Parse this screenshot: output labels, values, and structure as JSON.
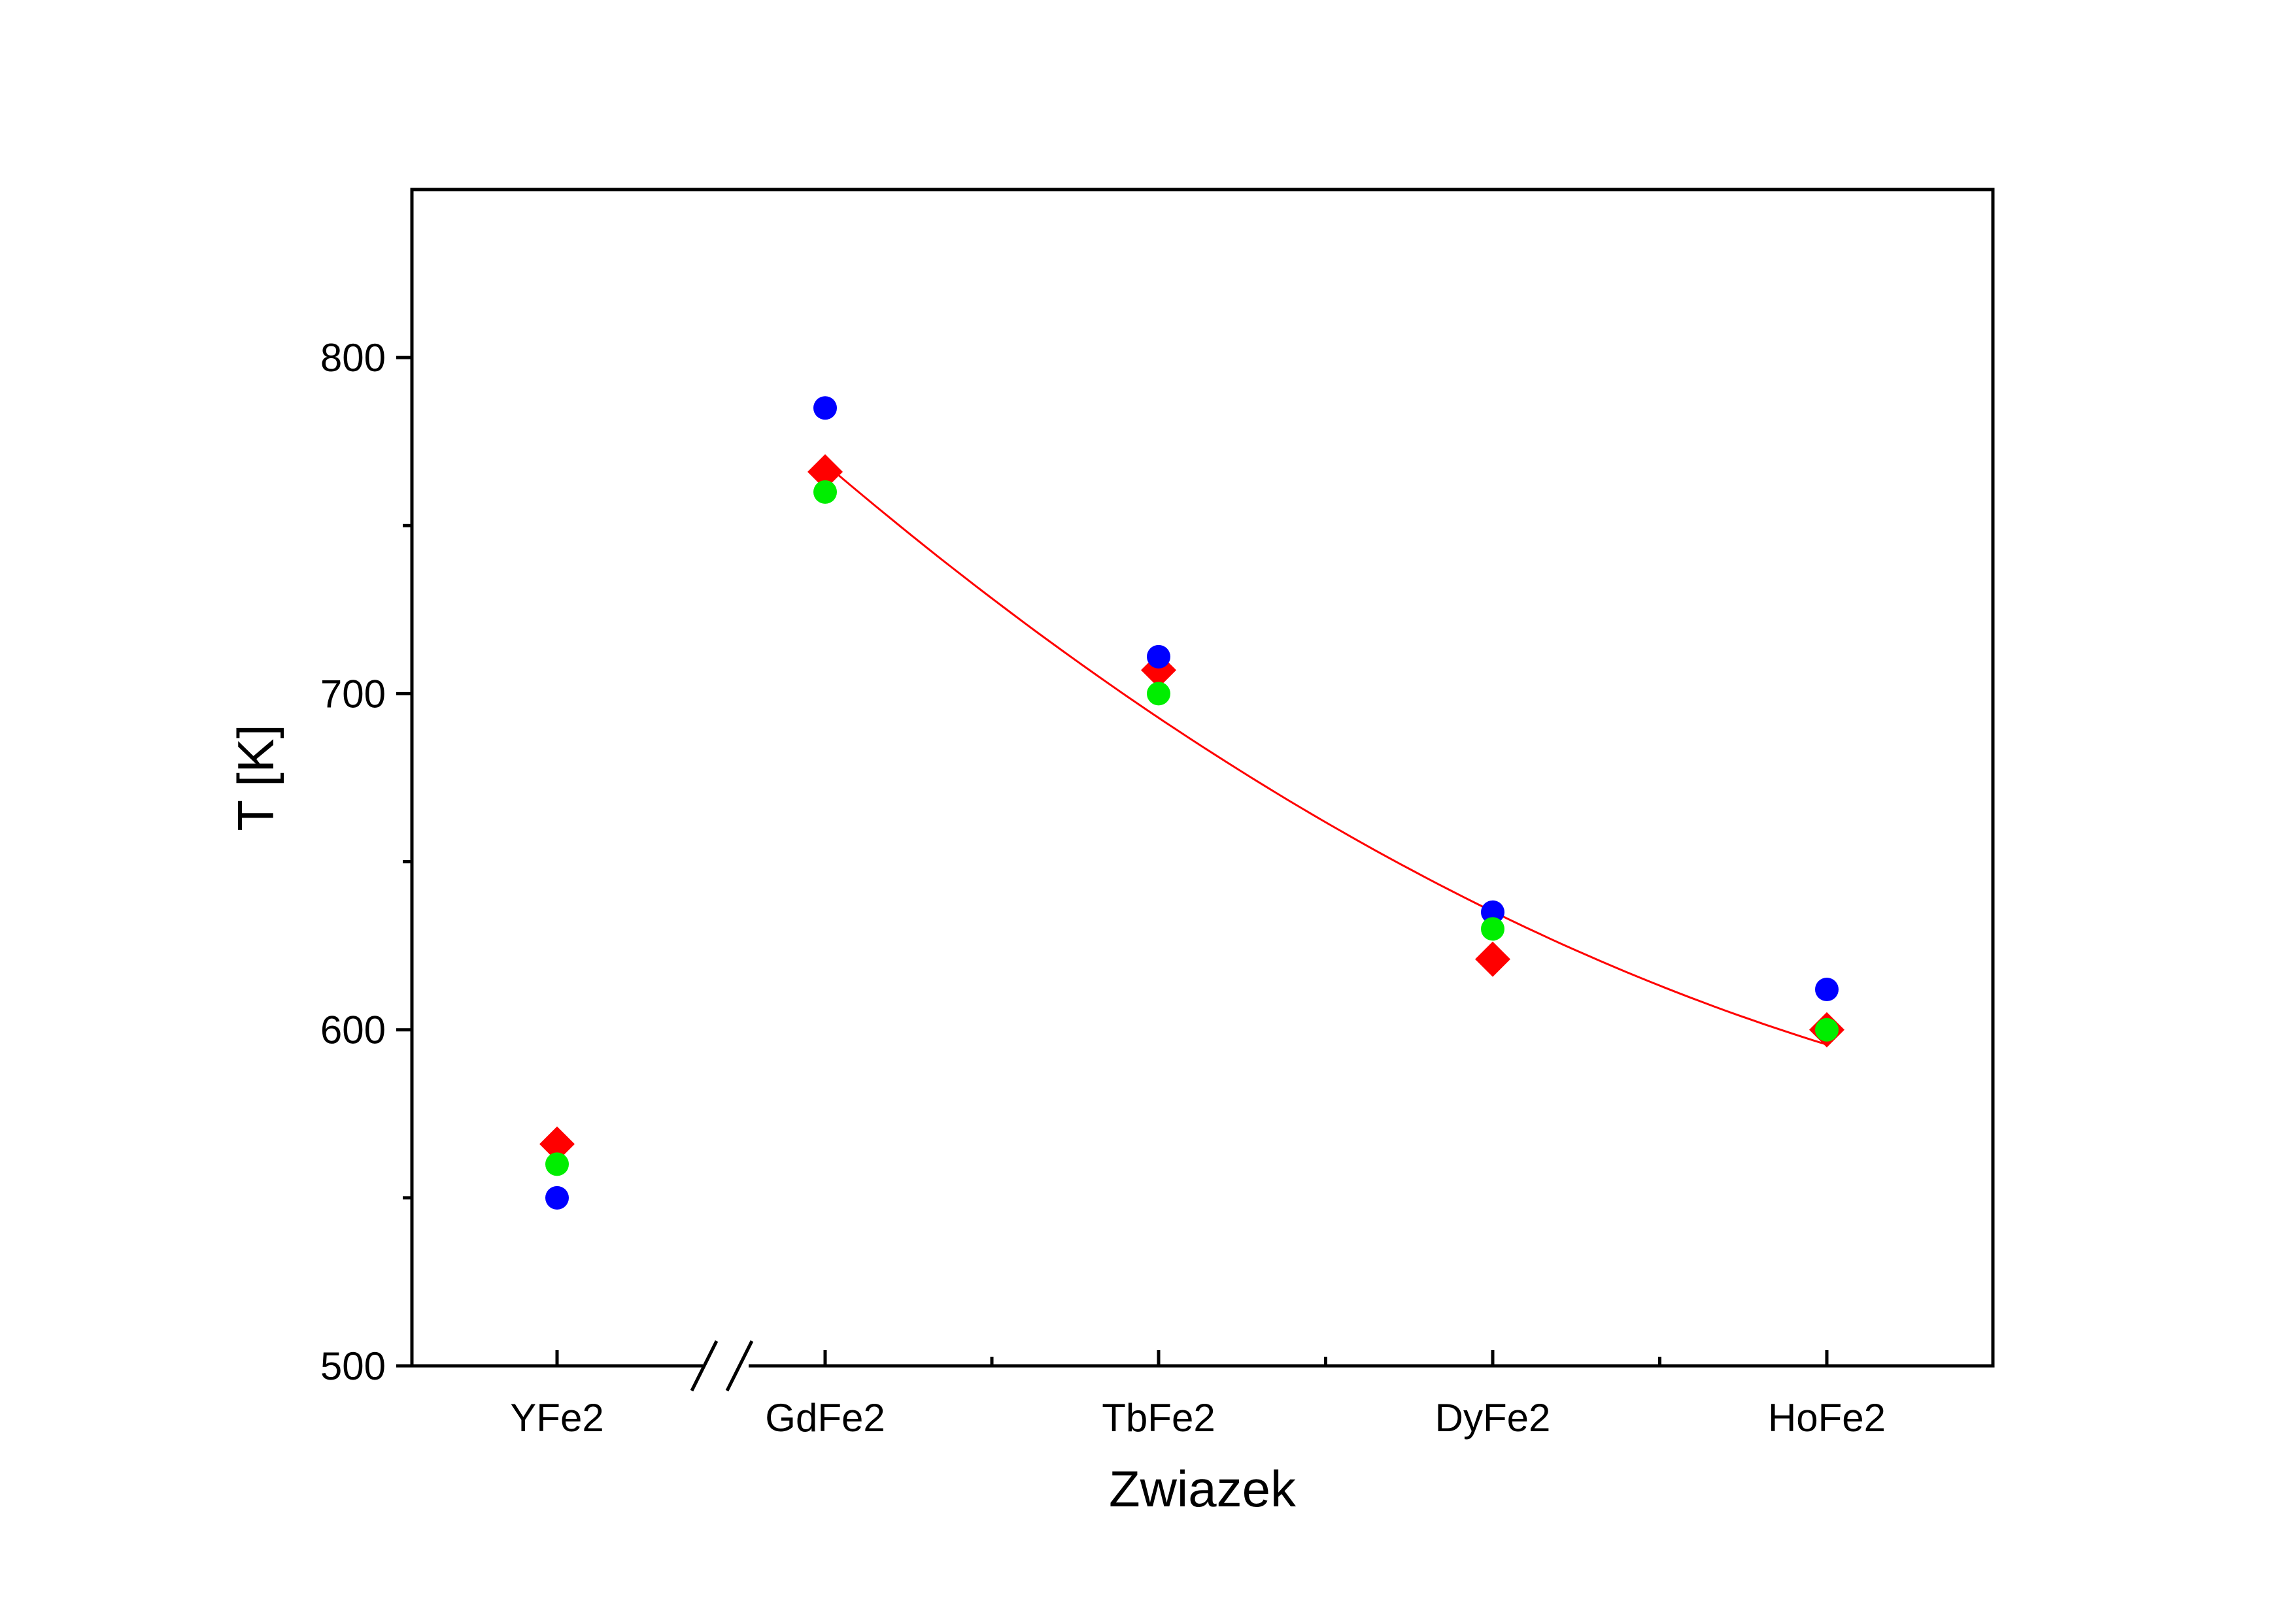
{
  "chart_data": {
    "type": "scatter",
    "title": "",
    "xlabel": "Zwiazek",
    "ylabel": "T [K]",
    "categories": [
      "YFe2",
      "GdFe2",
      "TbFe2",
      "DyFe2",
      "HoFe2"
    ],
    "x_axis_break_between": [
      "YFe2",
      "GdFe2"
    ],
    "ylim": [
      500,
      850
    ],
    "yticks": [
      500,
      600,
      700,
      800
    ],
    "yticks_minor": [
      550,
      650,
      750
    ],
    "grid": false,
    "legend": "none",
    "series": [
      {
        "marker": "diamond",
        "color": "#ff0000",
        "values": [
          566,
          766,
          707,
          621,
          600
        ]
      },
      {
        "marker": "circle",
        "color": "#0000ff",
        "values": [
          550,
          785,
          711,
          635,
          612
        ]
      },
      {
        "marker": "circle",
        "color": "#00ee00",
        "values": [
          560,
          760,
          700,
          630,
          600
        ]
      }
    ],
    "fit_line": {
      "color": "#ff0000",
      "categories": [
        "GdFe2",
        "TbFe2",
        "DyFe2",
        "HoFe2"
      ],
      "values": [
        768,
        694,
        634,
        596
      ]
    }
  }
}
